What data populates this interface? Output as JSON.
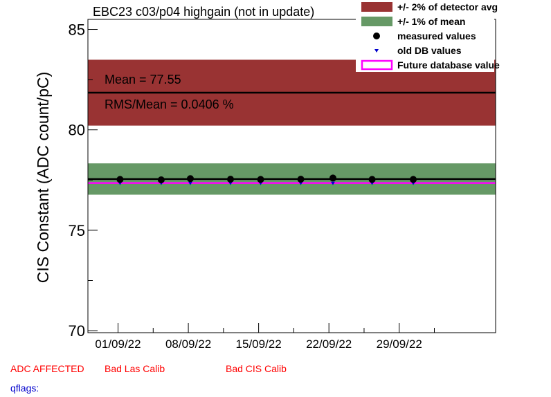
{
  "chart_data": {
    "type": "scatter",
    "title": "EBC23 c03/p04 highgain (not in update)",
    "ylabel": "CIS Constant (ADC count/pC)",
    "xlabel": "",
    "ylim": [
      69.9,
      85.5
    ],
    "xlim": [
      -3.0,
      37.6
    ],
    "y_ticks": [
      70,
      75,
      80,
      85
    ],
    "y_tick_labels": [
      "70",
      "75",
      "80",
      "85"
    ],
    "x_ticks": [
      0,
      7,
      14,
      21,
      28
    ],
    "x_tick_labels": [
      "01/09/22",
      "08/09/22",
      "15/09/22",
      "22/09/22",
      "29/09/22"
    ],
    "x_unit": "days from 01/09/22",
    "grid": false,
    "legend_position": "top-right",
    "legend": [
      "+/- 2% of detector avg",
      "+/- 1% of mean",
      "measured values",
      "old DB values",
      "Future database value"
    ],
    "detector_avg": 81.85,
    "detector_band": [
      80.21,
      83.49
    ],
    "mean": 77.55,
    "mean_band": [
      76.77,
      78.33
    ],
    "future_db_value": 77.35,
    "annotations": [
      "Mean = 77.55",
      "RMS/Mean = 0.0406 %"
    ],
    "series": [
      {
        "name": "measured values",
        "x": [
          0.2,
          4.3,
          7.2,
          11.2,
          14.2,
          18.2,
          21.4,
          25.3,
          29.4
        ],
        "y": [
          77.53,
          77.51,
          77.57,
          77.54,
          77.53,
          77.54,
          77.6,
          77.53,
          77.53
        ]
      },
      {
        "name": "old DB values",
        "x": [
          0.2,
          4.3,
          7.2,
          11.2,
          14.2,
          18.2,
          21.4,
          25.3,
          29.4
        ],
        "y": [
          77.35,
          77.35,
          77.35,
          77.35,
          77.35,
          77.35,
          77.35,
          77.35,
          77.35
        ]
      }
    ],
    "colors": {
      "detector_band": "#993333",
      "mean_band": "#669966",
      "measured": "#000000",
      "old_db": "#0000cc",
      "future_db": "#ff00ff"
    }
  },
  "flags": {
    "adc_affected": "ADC AFFECTED",
    "bad_las_calib": "Bad Las Calib",
    "bad_cis_calib": "Bad CIS Calib",
    "qflags": "qflags:"
  }
}
